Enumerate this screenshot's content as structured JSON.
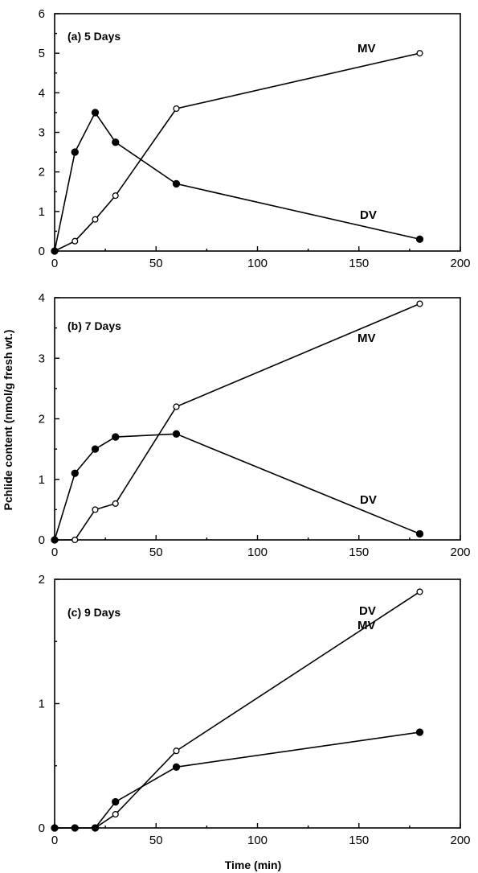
{
  "chart_data": {
    "ylabel": "Pchlide content (nmol/g fresh wt.)",
    "xlabel": "Time (min)",
    "panels": [
      {
        "type": "line",
        "title": "(a) 5 Days",
        "xlim": [
          0,
          200
        ],
        "ylim": [
          0,
          6
        ],
        "xticks": [
          "0",
          "50",
          "100",
          "150",
          "200"
        ],
        "yticks": [
          "0",
          "1",
          "2",
          "3",
          "4",
          "5",
          "6"
        ],
        "series": [
          {
            "name": "MV",
            "marker": "open-circle",
            "x": [
              0,
              10,
              20,
              30,
              60,
              180
            ],
            "y": [
              0,
              0.25,
              0.8,
              1.4,
              3.6,
              5.0
            ]
          },
          {
            "name": "DV",
            "marker": "filled-circle",
            "x": [
              0,
              10,
              20,
              30,
              60,
              180
            ],
            "y": [
              0,
              2.5,
              3.5,
              2.75,
              1.7,
              0.3
            ]
          }
        ]
      },
      {
        "type": "line",
        "title": "(b) 7 Days",
        "xlim": [
          0,
          200
        ],
        "ylim": [
          0,
          4
        ],
        "xticks": [
          "0",
          "50",
          "100",
          "150",
          "200"
        ],
        "yticks": [
          "0",
          "1",
          "2",
          "3",
          "4"
        ],
        "series": [
          {
            "name": "MV",
            "marker": "open-circle",
            "x": [
              0,
              10,
              20,
              30,
              60,
              180
            ],
            "y": [
              0,
              0,
              0.5,
              0.6,
              2.2,
              3.9
            ]
          },
          {
            "name": "DV",
            "marker": "filled-circle",
            "x": [
              0,
              10,
              20,
              30,
              60,
              180
            ],
            "y": [
              0,
              1.1,
              1.5,
              1.7,
              1.75,
              0.1
            ]
          }
        ]
      },
      {
        "type": "line",
        "title": "(c) 9 Days",
        "xlim": [
          0,
          200
        ],
        "ylim": [
          0,
          2
        ],
        "xticks": [
          "0",
          "50",
          "100",
          "150",
          "200"
        ],
        "yticks": [
          "0",
          "1",
          "2"
        ],
        "series": [
          {
            "name": "MV",
            "marker": "open-circle",
            "x": [
              0,
              10,
              20,
              30,
              60,
              180
            ],
            "y": [
              0,
              0,
              0,
              0.11,
              0.62,
              1.9
            ]
          },
          {
            "name": "DV",
            "marker": "filled-circle",
            "x": [
              0,
              10,
              20,
              30,
              60,
              180
            ],
            "y": [
              0,
              0,
              0,
              0.21,
              0.49,
              0.77
            ]
          }
        ]
      }
    ]
  }
}
